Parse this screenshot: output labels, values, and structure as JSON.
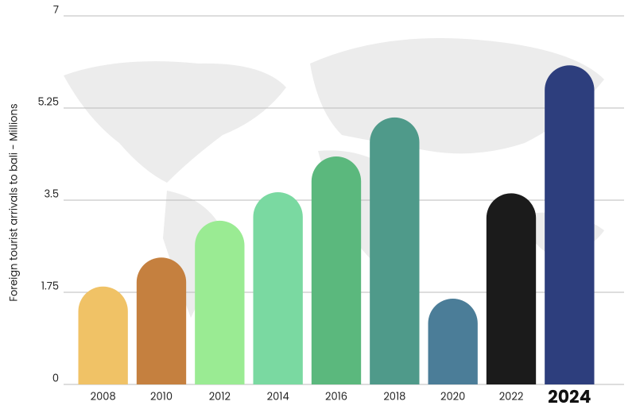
{
  "chart_data": {
    "type": "bar",
    "y_label": "Foreign tourist arrivals to bali - Millions",
    "categories": [
      "2008",
      "2010",
      "2012",
      "2014",
      "2016",
      "2018",
      "2020",
      "2022",
      "2024"
    ],
    "values": [
      1.86,
      2.41,
      3.11,
      3.65,
      4.33,
      5.07,
      1.63,
      3.63,
      6.06
    ],
    "colors": [
      "#f0c266",
      "#c5803f",
      "#9aeb93",
      "#7ad9a1",
      "#5bb87d",
      "#4f9a8a",
      "#4b7d98",
      "#1b1b1b",
      "#2d3e7d"
    ],
    "ylim": [
      0,
      7
    ],
    "yticks": [
      0,
      1.75,
      3.5,
      5.25,
      7
    ],
    "grid": true
  }
}
